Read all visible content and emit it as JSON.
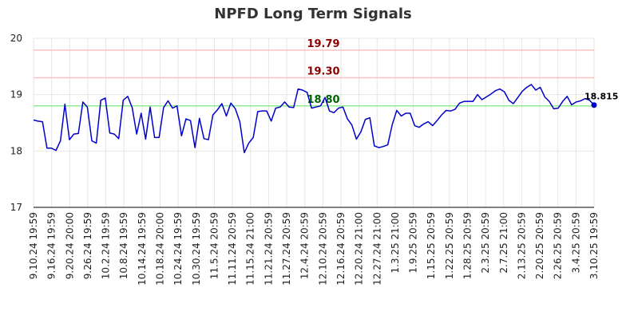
{
  "chart_data": {
    "type": "line",
    "title": "NPFD Long Term Signals",
    "xlabel": "",
    "ylabel": "",
    "ylim": [
      17,
      20
    ],
    "yticks": [
      17,
      18,
      19,
      20
    ],
    "grid": true,
    "colors": {
      "line": "#0000cc",
      "upper_line": "#ffc0c0",
      "upper_text": "#8b0000",
      "middle_line": "#ffc0c0",
      "middle_text": "#8b0000",
      "lower_line": "#90ee90",
      "lower_text": "#006400",
      "grid": "#e6e6e6"
    },
    "reference_lines": [
      {
        "value": 19.79,
        "label": "19.79",
        "kind": "upper"
      },
      {
        "value": 19.3,
        "label": "19.30",
        "kind": "middle"
      },
      {
        "value": 18.8,
        "label": "18.80",
        "kind": "lower"
      }
    ],
    "x_tick_labels": [
      "9.10.24 19:59",
      "9.16.24 19:59",
      "9.20.24 20:00",
      "9.26.24 19:59",
      "10.2.24 19:59",
      "10.8.24 19:59",
      "10.14.24 19:59",
      "10.18.24 20:00",
      "10.24.24 19:59",
      "10.30.24 19:59",
      "11.5.24 20:59",
      "11.11.24 20:59",
      "11.15.24 21:00",
      "11.21.24 20:59",
      "11.27.24 20:59",
      "12.4.24 20:59",
      "12.10.24 20:59",
      "12.16.24 20:59",
      "12.20.24 21:00",
      "12.27.24 21:00",
      "1.3.25 21:00",
      "1.9.25 20:59",
      "1.15.25 20:59",
      "1.22.25 20:59",
      "1.28.25 20:59",
      "2.3.25 20:59",
      "2.7.25 21:00",
      "2.13.25 20:59",
      "2.20.25 20:59",
      "2.26.25 20:59",
      "3.4.25 20:59",
      "3.10.25 19:59"
    ],
    "last_value_label": "18.815",
    "values": [
      18.55,
      18.53,
      18.52,
      18.05,
      18.05,
      18.01,
      18.18,
      18.83,
      18.2,
      18.3,
      18.31,
      18.87,
      18.78,
      18.18,
      18.14,
      18.9,
      18.94,
      18.32,
      18.3,
      18.22,
      18.9,
      18.97,
      18.77,
      18.3,
      18.67,
      18.21,
      18.78,
      18.24,
      18.24,
      18.77,
      18.89,
      18.76,
      18.8,
      18.27,
      18.57,
      18.54,
      18.06,
      18.58,
      18.22,
      18.2,
      18.64,
      18.73,
      18.84,
      18.62,
      18.85,
      18.75,
      18.52,
      17.97,
      18.14,
      18.24,
      18.7,
      18.71,
      18.71,
      18.53,
      18.76,
      18.78,
      18.87,
      18.78,
      18.77,
      19.1,
      19.08,
      19.04,
      18.76,
      18.78,
      18.8,
      18.95,
      18.71,
      18.68,
      18.76,
      18.78,
      18.57,
      18.46,
      18.21,
      18.34,
      18.56,
      18.59,
      18.09,
      18.06,
      18.08,
      18.11,
      18.47,
      18.72,
      18.62,
      18.67,
      18.67,
      18.45,
      18.42,
      18.48,
      18.52,
      18.45,
      18.54,
      18.64,
      18.72,
      18.71,
      18.74,
      18.85,
      18.88,
      18.88,
      18.88,
      19.0,
      18.91,
      18.96,
      19.01,
      19.07,
      19.1,
      19.05,
      18.9,
      18.84,
      18.95,
      19.06,
      19.13,
      19.18,
      19.08,
      19.13,
      18.96,
      18.88,
      18.75,
      18.76,
      18.88,
      18.97,
      18.82,
      18.87,
      18.89,
      18.93,
      18.9,
      18.815
    ]
  }
}
